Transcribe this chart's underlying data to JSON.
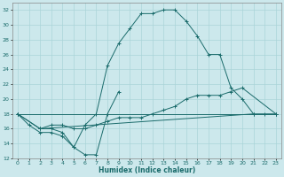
{
  "xlabel": "Humidex (Indice chaleur)",
  "xlim": [
    -0.5,
    23.5
  ],
  "ylim": [
    12,
    33
  ],
  "yticks": [
    12,
    14,
    16,
    18,
    20,
    22,
    24,
    26,
    28,
    30,
    32
  ],
  "xticks": [
    0,
    1,
    2,
    3,
    4,
    5,
    6,
    7,
    8,
    9,
    10,
    11,
    12,
    13,
    14,
    15,
    16,
    17,
    18,
    19,
    20,
    21,
    22,
    23
  ],
  "bg_color": "#cce8ec",
  "grid_color": "#aad4d8",
  "line_color": "#1a6b6b",
  "lines": [
    {
      "x": [
        0,
        1,
        2,
        3,
        4,
        5,
        6,
        7,
        8,
        9
      ],
      "y": [
        18.0,
        16.5,
        15.5,
        15.5,
        15.0,
        13.5,
        12.5,
        12.5,
        18.0,
        21.0
      ]
    },
    {
      "x": [
        0,
        23
      ],
      "y": [
        18.0,
        18.0
      ]
    },
    {
      "x": [
        2,
        21
      ],
      "y": [
        16.0,
        18.0
      ]
    },
    {
      "x": [
        0,
        2,
        3,
        4,
        5,
        6,
        7,
        8,
        9,
        10,
        11,
        12,
        13,
        14,
        15,
        16,
        17,
        18,
        19,
        20,
        21,
        22,
        23
      ],
      "y": [
        18.0,
        16.0,
        16.0,
        15.5,
        13.5,
        16.5,
        18.0,
        24.5,
        27.5,
        29.5,
        31.5,
        31.5,
        32.0,
        32.0,
        30.5,
        28.5,
        26.0,
        26.0,
        21.5,
        20.0,
        18.0,
        18.0,
        18.0
      ]
    },
    {
      "x": [
        0,
        2,
        3,
        4,
        5,
        6,
        7,
        8,
        9,
        10,
        11,
        12,
        13,
        14,
        15,
        16,
        17,
        18,
        19,
        20,
        23
      ],
      "y": [
        18.0,
        16.0,
        16.5,
        16.5,
        16.0,
        16.0,
        16.5,
        17.0,
        17.5,
        17.5,
        17.5,
        18.0,
        18.5,
        19.0,
        20.0,
        20.5,
        20.5,
        20.5,
        21.0,
        21.5,
        18.0
      ]
    }
  ]
}
